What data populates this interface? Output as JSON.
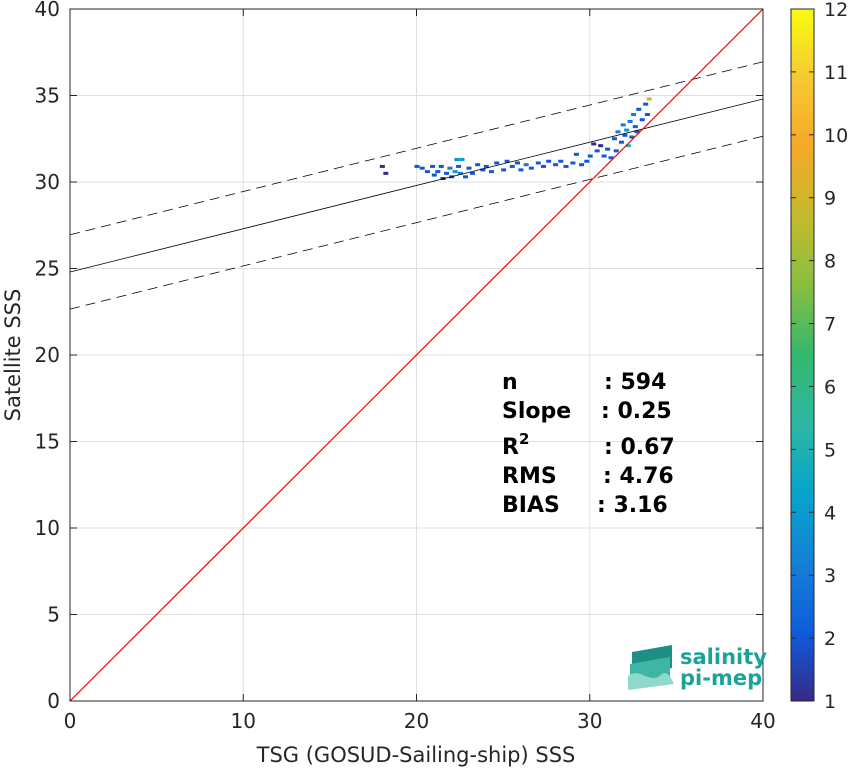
{
  "chart_data": {
    "type": "scatter",
    "xlabel": "TSG (GOSUD-Sailing-ship) SSS",
    "ylabel": "Satellite SSS",
    "xlim": [
      0,
      40
    ],
    "ylim": [
      0,
      40
    ],
    "x_ticks": [
      "0",
      "10",
      "20",
      "30",
      "40"
    ],
    "y_ticks": [
      "0",
      "5",
      "10",
      "15",
      "20",
      "25",
      "30",
      "35",
      "40"
    ],
    "grid": true,
    "identity_line": {
      "from": [
        0,
        0
      ],
      "to": [
        40,
        40
      ],
      "color": "#ff0000"
    },
    "regression_line": {
      "intercept": 24.8,
      "slope": 0.25,
      "color": "#000000"
    },
    "confidence_band_offset": 2.15,
    "density_points": [
      {
        "x": 18.0,
        "y": 30.9,
        "count": 1
      },
      {
        "x": 18.2,
        "y": 30.5,
        "count": 1
      },
      {
        "x": 20.0,
        "y": 30.9,
        "count": 2
      },
      {
        "x": 20.3,
        "y": 30.8,
        "count": 2
      },
      {
        "x": 20.6,
        "y": 30.6,
        "count": 2
      },
      {
        "x": 20.9,
        "y": 30.9,
        "count": 2
      },
      {
        "x": 21.0,
        "y": 30.4,
        "count": 2
      },
      {
        "x": 21.2,
        "y": 30.6,
        "count": 2
      },
      {
        "x": 21.4,
        "y": 30.9,
        "count": 2
      },
      {
        "x": 21.5,
        "y": 30.2,
        "count": 1
      },
      {
        "x": 21.7,
        "y": 30.5,
        "count": 2
      },
      {
        "x": 21.9,
        "y": 30.8,
        "count": 3
      },
      {
        "x": 22.0,
        "y": 30.3,
        "count": 2
      },
      {
        "x": 22.2,
        "y": 30.6,
        "count": 4
      },
      {
        "x": 22.3,
        "y": 31.3,
        "count": 4
      },
      {
        "x": 22.4,
        "y": 30.9,
        "count": 2
      },
      {
        "x": 22.5,
        "y": 30.5,
        "count": 3
      },
      {
        "x": 22.6,
        "y": 31.3,
        "count": 4
      },
      {
        "x": 22.8,
        "y": 30.3,
        "count": 2
      },
      {
        "x": 23.0,
        "y": 30.8,
        "count": 2
      },
      {
        "x": 23.2,
        "y": 30.5,
        "count": 2
      },
      {
        "x": 23.5,
        "y": 31.0,
        "count": 2
      },
      {
        "x": 23.8,
        "y": 30.7,
        "count": 2
      },
      {
        "x": 24.0,
        "y": 30.9,
        "count": 2
      },
      {
        "x": 24.3,
        "y": 30.6,
        "count": 2
      },
      {
        "x": 24.6,
        "y": 31.1,
        "count": 2
      },
      {
        "x": 25.0,
        "y": 30.7,
        "count": 2
      },
      {
        "x": 25.2,
        "y": 31.2,
        "count": 2
      },
      {
        "x": 25.5,
        "y": 30.9,
        "count": 2
      },
      {
        "x": 25.8,
        "y": 31.1,
        "count": 2
      },
      {
        "x": 26.0,
        "y": 30.7,
        "count": 2
      },
      {
        "x": 26.3,
        "y": 31.0,
        "count": 3
      },
      {
        "x": 26.6,
        "y": 30.8,
        "count": 2
      },
      {
        "x": 27.0,
        "y": 31.1,
        "count": 2
      },
      {
        "x": 27.3,
        "y": 30.9,
        "count": 2
      },
      {
        "x": 27.6,
        "y": 31.2,
        "count": 2
      },
      {
        "x": 28.0,
        "y": 31.0,
        "count": 2
      },
      {
        "x": 28.3,
        "y": 31.2,
        "count": 2
      },
      {
        "x": 28.6,
        "y": 30.9,
        "count": 2
      },
      {
        "x": 29.0,
        "y": 31.1,
        "count": 2
      },
      {
        "x": 29.2,
        "y": 31.6,
        "count": 2
      },
      {
        "x": 29.5,
        "y": 31.0,
        "count": 2
      },
      {
        "x": 29.8,
        "y": 31.2,
        "count": 2
      },
      {
        "x": 30.0,
        "y": 31.5,
        "count": 2
      },
      {
        "x": 30.2,
        "y": 32.2,
        "count": 1
      },
      {
        "x": 30.4,
        "y": 31.8,
        "count": 2
      },
      {
        "x": 30.6,
        "y": 32.1,
        "count": 1
      },
      {
        "x": 30.8,
        "y": 31.5,
        "count": 2
      },
      {
        "x": 31.0,
        "y": 31.9,
        "count": 2
      },
      {
        "x": 31.2,
        "y": 31.4,
        "count": 2
      },
      {
        "x": 31.4,
        "y": 32.5,
        "count": 2
      },
      {
        "x": 31.5,
        "y": 31.8,
        "count": 2
      },
      {
        "x": 31.6,
        "y": 32.9,
        "count": 3
      },
      {
        "x": 31.8,
        "y": 32.3,
        "count": 2
      },
      {
        "x": 31.9,
        "y": 33.3,
        "count": 3
      },
      {
        "x": 32.0,
        "y": 32.7,
        "count": 2
      },
      {
        "x": 32.1,
        "y": 33.0,
        "count": 4
      },
      {
        "x": 32.2,
        "y": 32.1,
        "count": 5
      },
      {
        "x": 32.3,
        "y": 33.5,
        "count": 3
      },
      {
        "x": 32.4,
        "y": 32.6,
        "count": 2
      },
      {
        "x": 32.5,
        "y": 33.9,
        "count": 3
      },
      {
        "x": 32.6,
        "y": 33.2,
        "count": 2
      },
      {
        "x": 32.7,
        "y": 32.9,
        "count": 2
      },
      {
        "x": 32.8,
        "y": 34.2,
        "count": 2
      },
      {
        "x": 33.0,
        "y": 33.6,
        "count": 2
      },
      {
        "x": 33.2,
        "y": 34.5,
        "count": 2
      },
      {
        "x": 33.3,
        "y": 33.9,
        "count": 2
      },
      {
        "x": 33.4,
        "y": 34.8,
        "count": 9
      }
    ],
    "colorbar": {
      "min": 1,
      "max": 12,
      "ticks": [
        "1",
        "2",
        "3",
        "4",
        "5",
        "6",
        "7",
        "8",
        "9",
        "10",
        "11",
        "12"
      ],
      "colormap": "parula"
    }
  },
  "stats": [
    {
      "label": "n",
      "sep": ": 594"
    },
    {
      "label": "Slope",
      "sep": ": 0.25"
    },
    {
      "label": "R",
      "sup": "2",
      "sep": ": 0.67"
    },
    {
      "label": "RMS",
      "sep": ": 4.76"
    },
    {
      "label": "BIAS",
      "sep": ": 3.16"
    }
  ],
  "logo": {
    "line1": "salinity",
    "line2": "pi-mep"
  }
}
